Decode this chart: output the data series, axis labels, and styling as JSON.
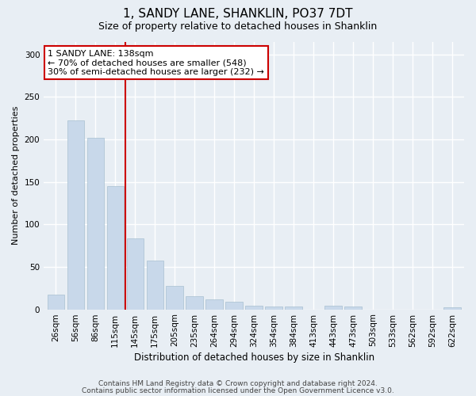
{
  "title": "1, SANDY LANE, SHANKLIN, PO37 7DT",
  "subtitle": "Size of property relative to detached houses in Shanklin",
  "xlabel": "Distribution of detached houses by size in Shanklin",
  "ylabel": "Number of detached properties",
  "bar_color": "#c8d8ea",
  "bar_edge_color": "#a8c0d0",
  "categories": [
    "26sqm",
    "56sqm",
    "86sqm",
    "115sqm",
    "145sqm",
    "175sqm",
    "205sqm",
    "235sqm",
    "264sqm",
    "294sqm",
    "324sqm",
    "354sqm",
    "384sqm",
    "413sqm",
    "443sqm",
    "473sqm",
    "503sqm",
    "533sqm",
    "562sqm",
    "592sqm",
    "622sqm"
  ],
  "values": [
    17,
    222,
    202,
    145,
    83,
    57,
    28,
    15,
    12,
    9,
    4,
    3,
    3,
    0,
    4,
    3,
    0,
    0,
    0,
    0,
    2
  ],
  "vline_x": 4.0,
  "vline_color": "#cc0000",
  "annotation_line1": "1 SANDY LANE: 138sqm",
  "annotation_line2": "← 70% of detached houses are smaller (548)",
  "annotation_line3": "30% of semi-detached houses are larger (232) →",
  "annotation_box_color": "#ffffff",
  "annotation_box_edge_color": "#cc0000",
  "ylim": [
    0,
    315
  ],
  "yticks": [
    0,
    50,
    100,
    150,
    200,
    250,
    300
  ],
  "footer1": "Contains HM Land Registry data © Crown copyright and database right 2024.",
  "footer2": "Contains public sector information licensed under the Open Government Licence v3.0.",
  "bg_color": "#e8eef4",
  "grid_color": "#ffffff",
  "title_fontsize": 11,
  "subtitle_fontsize": 9,
  "axis_label_fontsize": 8,
  "tick_fontsize": 7.5,
  "annotation_fontsize": 8,
  "footer_fontsize": 6.5
}
